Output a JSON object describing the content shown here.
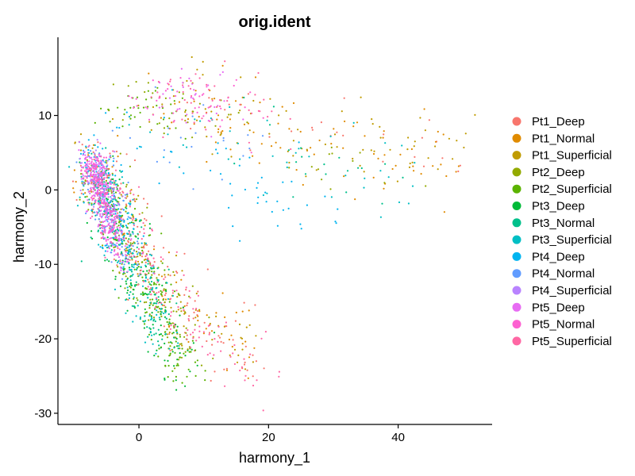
{
  "chart_data": {
    "type": "scatter",
    "title": "orig.ident",
    "xlabel": "harmony_1",
    "ylabel": "harmony_2",
    "xlim": [
      -12.5,
      54.5
    ],
    "ylim": [
      -31.5,
      20.5
    ],
    "x_ticks": [
      0,
      20,
      40
    ],
    "y_ticks": [
      10,
      0,
      -10,
      -20,
      -30
    ],
    "grid": false,
    "legend_position": "right",
    "series": [
      {
        "name": "Pt1_Deep",
        "color": "#F8766D",
        "weight": 0.07,
        "components": [
          {
            "pts": [
              [
                -6,
                4
              ],
              [
                -7,
                2
              ],
              [
                -5,
                0
              ],
              [
                -3,
                -4
              ],
              [
                0,
                -8
              ],
              [
                3,
                -12
              ],
              [
                6,
                -16
              ],
              [
                10,
                -18
              ],
              [
                14,
                -20
              ],
              [
                18,
                -23
              ]
            ],
            "n": 160,
            "spread": 2.2
          },
          {
            "pts": [
              [
                2,
                11
              ],
              [
                8,
                12
              ],
              [
                14,
                9
              ],
              [
                20,
                8
              ],
              [
                26,
                7
              ],
              [
                34,
                6
              ],
              [
                42,
                5
              ],
              [
                48,
                4
              ]
            ],
            "n": 30,
            "spread": 2.5
          }
        ]
      },
      {
        "name": "Pt1_Normal",
        "color": "#E08B00",
        "weight": 0.07,
        "components": [
          {
            "pts": [
              [
                -6,
                4
              ],
              [
                -7,
                2
              ],
              [
                -5,
                0
              ],
              [
                -3,
                -4
              ],
              [
                0,
                -8
              ],
              [
                3,
                -12
              ],
              [
                6,
                -16
              ],
              [
                10,
                -18
              ],
              [
                14,
                -20
              ],
              [
                18,
                -23
              ]
            ],
            "n": 90,
            "spread": 2.2
          },
          {
            "pts": [
              [
                2,
                11
              ],
              [
                8,
                12
              ],
              [
                14,
                9
              ],
              [
                20,
                8
              ],
              [
                26,
                7
              ],
              [
                34,
                6
              ],
              [
                42,
                5
              ],
              [
                48,
                4
              ]
            ],
            "n": 90,
            "spread": 2.8
          }
        ]
      },
      {
        "name": "Pt1_Superficial",
        "color": "#C09B00",
        "weight": 0.07,
        "components": [
          {
            "pts": [
              [
                -6,
                4
              ],
              [
                -7,
                2
              ],
              [
                -5,
                0
              ],
              [
                -3,
                -4
              ],
              [
                0,
                -8
              ],
              [
                3,
                -12
              ],
              [
                6,
                -16
              ],
              [
                10,
                -18
              ],
              [
                14,
                -20
              ],
              [
                18,
                -23
              ]
            ],
            "n": 90,
            "spread": 2.2
          },
          {
            "pts": [
              [
                2,
                11
              ],
              [
                8,
                12
              ],
              [
                14,
                9
              ],
              [
                20,
                8
              ],
              [
                26,
                7
              ],
              [
                34,
                6
              ],
              [
                42,
                5
              ],
              [
                48,
                4
              ]
            ],
            "n": 80,
            "spread": 2.8
          }
        ]
      },
      {
        "name": "Pt2_Deep",
        "color": "#93AA00",
        "weight": 0.07,
        "components": [
          {
            "pts": [
              [
                -6,
                3
              ],
              [
                -5,
                -1
              ],
              [
                -3,
                -5
              ],
              [
                0,
                -9
              ],
              [
                2,
                -13
              ],
              [
                4,
                -17
              ],
              [
                6,
                -20
              ],
              [
                8,
                -23
              ]
            ],
            "n": 150,
            "spread": 2.0
          },
          {
            "pts": [
              [
                -4,
                10
              ],
              [
                0,
                11
              ],
              [
                4,
                11
              ],
              [
                10,
                10
              ],
              [
                20,
                6
              ],
              [
                30,
                3
              ],
              [
                40,
                2
              ]
            ],
            "n": 40,
            "spread": 2.4
          }
        ]
      },
      {
        "name": "Pt2_Superficial",
        "color": "#5BB300",
        "weight": 0.07,
        "components": [
          {
            "pts": [
              [
                -5,
                2
              ],
              [
                -4,
                -3
              ],
              [
                -2,
                -7
              ],
              [
                0,
                -11
              ],
              [
                2,
                -14
              ],
              [
                4,
                -18
              ],
              [
                6,
                -22
              ],
              [
                8,
                -25
              ]
            ],
            "n": 170,
            "spread": 1.8
          },
          {
            "pts": [
              [
                -5,
                10
              ],
              [
                -2,
                11
              ],
              [
                2,
                11
              ],
              [
                6,
                10
              ]
            ],
            "n": 40,
            "spread": 1.6
          }
        ]
      },
      {
        "name": "Pt3_Deep",
        "color": "#00BA38",
        "weight": 0.07,
        "components": [
          {
            "pts": [
              [
                -6,
                3
              ],
              [
                -5,
                -1
              ],
              [
                -3,
                -6
              ],
              [
                -1,
                -10
              ],
              [
                1,
                -14
              ],
              [
                3,
                -18
              ],
              [
                5,
                -21
              ],
              [
                7,
                -24
              ]
            ],
            "n": 160,
            "spread": 1.8
          }
        ]
      },
      {
        "name": "Pt3_Normal",
        "color": "#00C08B",
        "weight": 0.07,
        "components": [
          {
            "pts": [
              [
                -6,
                3
              ],
              [
                -5,
                -2
              ],
              [
                -3,
                -6
              ],
              [
                -1,
                -10
              ],
              [
                1,
                -14
              ],
              [
                3,
                -17
              ],
              [
                5,
                -20
              ]
            ],
            "n": 140,
            "spread": 1.8
          },
          {
            "pts": [
              [
                8,
                10
              ],
              [
                18,
                6
              ],
              [
                30,
                2
              ],
              [
                40,
                0
              ]
            ],
            "n": 20,
            "spread": 3.0
          }
        ]
      },
      {
        "name": "Pt3_Superficial",
        "color": "#00BFC4",
        "weight": 0.07,
        "components": [
          {
            "pts": [
              [
                -7,
                4
              ],
              [
                -6,
                0
              ],
              [
                -4,
                -4
              ],
              [
                -2,
                -8
              ],
              [
                0,
                -12
              ],
              [
                2,
                -16
              ],
              [
                4,
                -20
              ]
            ],
            "n": 130,
            "spread": 1.8
          },
          {
            "pts": [
              [
                0,
                9
              ],
              [
                8,
                9
              ],
              [
                16,
                6
              ],
              [
                26,
                3
              ],
              [
                36,
                1
              ],
              [
                44,
                0
              ]
            ],
            "n": 40,
            "spread": 3.0
          }
        ]
      },
      {
        "name": "Pt4_Deep",
        "color": "#00B4F0",
        "weight": 0.07,
        "components": [
          {
            "pts": [
              [
                -7,
                5
              ],
              [
                -6,
                2
              ],
              [
                -5,
                -1
              ],
              [
                -3,
                -5
              ],
              [
                -1,
                -9
              ]
            ],
            "n": 130,
            "spread": 1.6
          },
          {
            "pts": [
              [
                -2,
                8
              ],
              [
                4,
                6
              ],
              [
                10,
                4
              ],
              [
                16,
                0
              ],
              [
                22,
                -2
              ],
              [
                30,
                -4
              ]
            ],
            "n": 50,
            "spread": 3.0
          }
        ]
      },
      {
        "name": "Pt4_Normal",
        "color": "#619CFF",
        "weight": 0.07,
        "components": [
          {
            "pts": [
              [
                -7,
                4
              ],
              [
                -6,
                1
              ],
              [
                -5,
                -2
              ],
              [
                -3,
                -6
              ],
              [
                -1,
                -10
              ]
            ],
            "n": 120,
            "spread": 1.5
          },
          {
            "pts": [
              [
                0,
                8
              ],
              [
                8,
                6
              ],
              [
                16,
                3
              ]
            ],
            "n": 20,
            "spread": 2.5
          }
        ]
      },
      {
        "name": "Pt4_Superficial",
        "color": "#B983FF",
        "weight": 0.07,
        "components": [
          {
            "pts": [
              [
                -7,
                5
              ],
              [
                -6,
                2
              ],
              [
                -5,
                -1
              ],
              [
                -4,
                -4
              ]
            ],
            "n": 120,
            "spread": 1.2
          }
        ]
      },
      {
        "name": "Pt5_Deep",
        "color": "#E76BF3",
        "weight": 0.07,
        "components": [
          {
            "pts": [
              [
                -7,
                4
              ],
              [
                -7,
                2
              ],
              [
                -6,
                0
              ],
              [
                -5,
                -3
              ],
              [
                -4,
                -6
              ],
              [
                -2,
                -10
              ]
            ],
            "n": 220,
            "spread": 1.0
          },
          {
            "pts": [
              [
                2,
                12
              ],
              [
                6,
                13
              ],
              [
                10,
                12
              ],
              [
                14,
                10
              ]
            ],
            "n": 30,
            "spread": 2.0
          }
        ]
      },
      {
        "name": "Pt5_Normal",
        "color": "#FD61D1",
        "weight": 0.07,
        "components": [
          {
            "pts": [
              [
                -7,
                4
              ],
              [
                -7,
                2
              ],
              [
                -6,
                0
              ],
              [
                -5,
                -3
              ],
              [
                -4,
                -6
              ]
            ],
            "n": 180,
            "spread": 0.9
          },
          {
            "pts": [
              [
                0,
                11
              ],
              [
                6,
                13
              ],
              [
                12,
                12
              ],
              [
                16,
                10
              ]
            ],
            "n": 40,
            "spread": 2.0
          }
        ]
      },
      {
        "name": "Pt5_Superficial",
        "color": "#FF67A4",
        "weight": 0.07,
        "components": [
          {
            "pts": [
              [
                -6,
                3
              ],
              [
                -4,
                -2
              ],
              [
                -1,
                -7
              ],
              [
                2,
                -12
              ],
              [
                6,
                -16
              ],
              [
                10,
                -19
              ],
              [
                14,
                -22
              ],
              [
                18,
                -26
              ]
            ],
            "n": 150,
            "spread": 2.2
          },
          {
            "pts": [
              [
                2,
                12
              ],
              [
                8,
                12
              ],
              [
                14,
                11
              ],
              [
                20,
                9
              ]
            ],
            "n": 50,
            "spread": 2.3
          }
        ]
      }
    ]
  }
}
